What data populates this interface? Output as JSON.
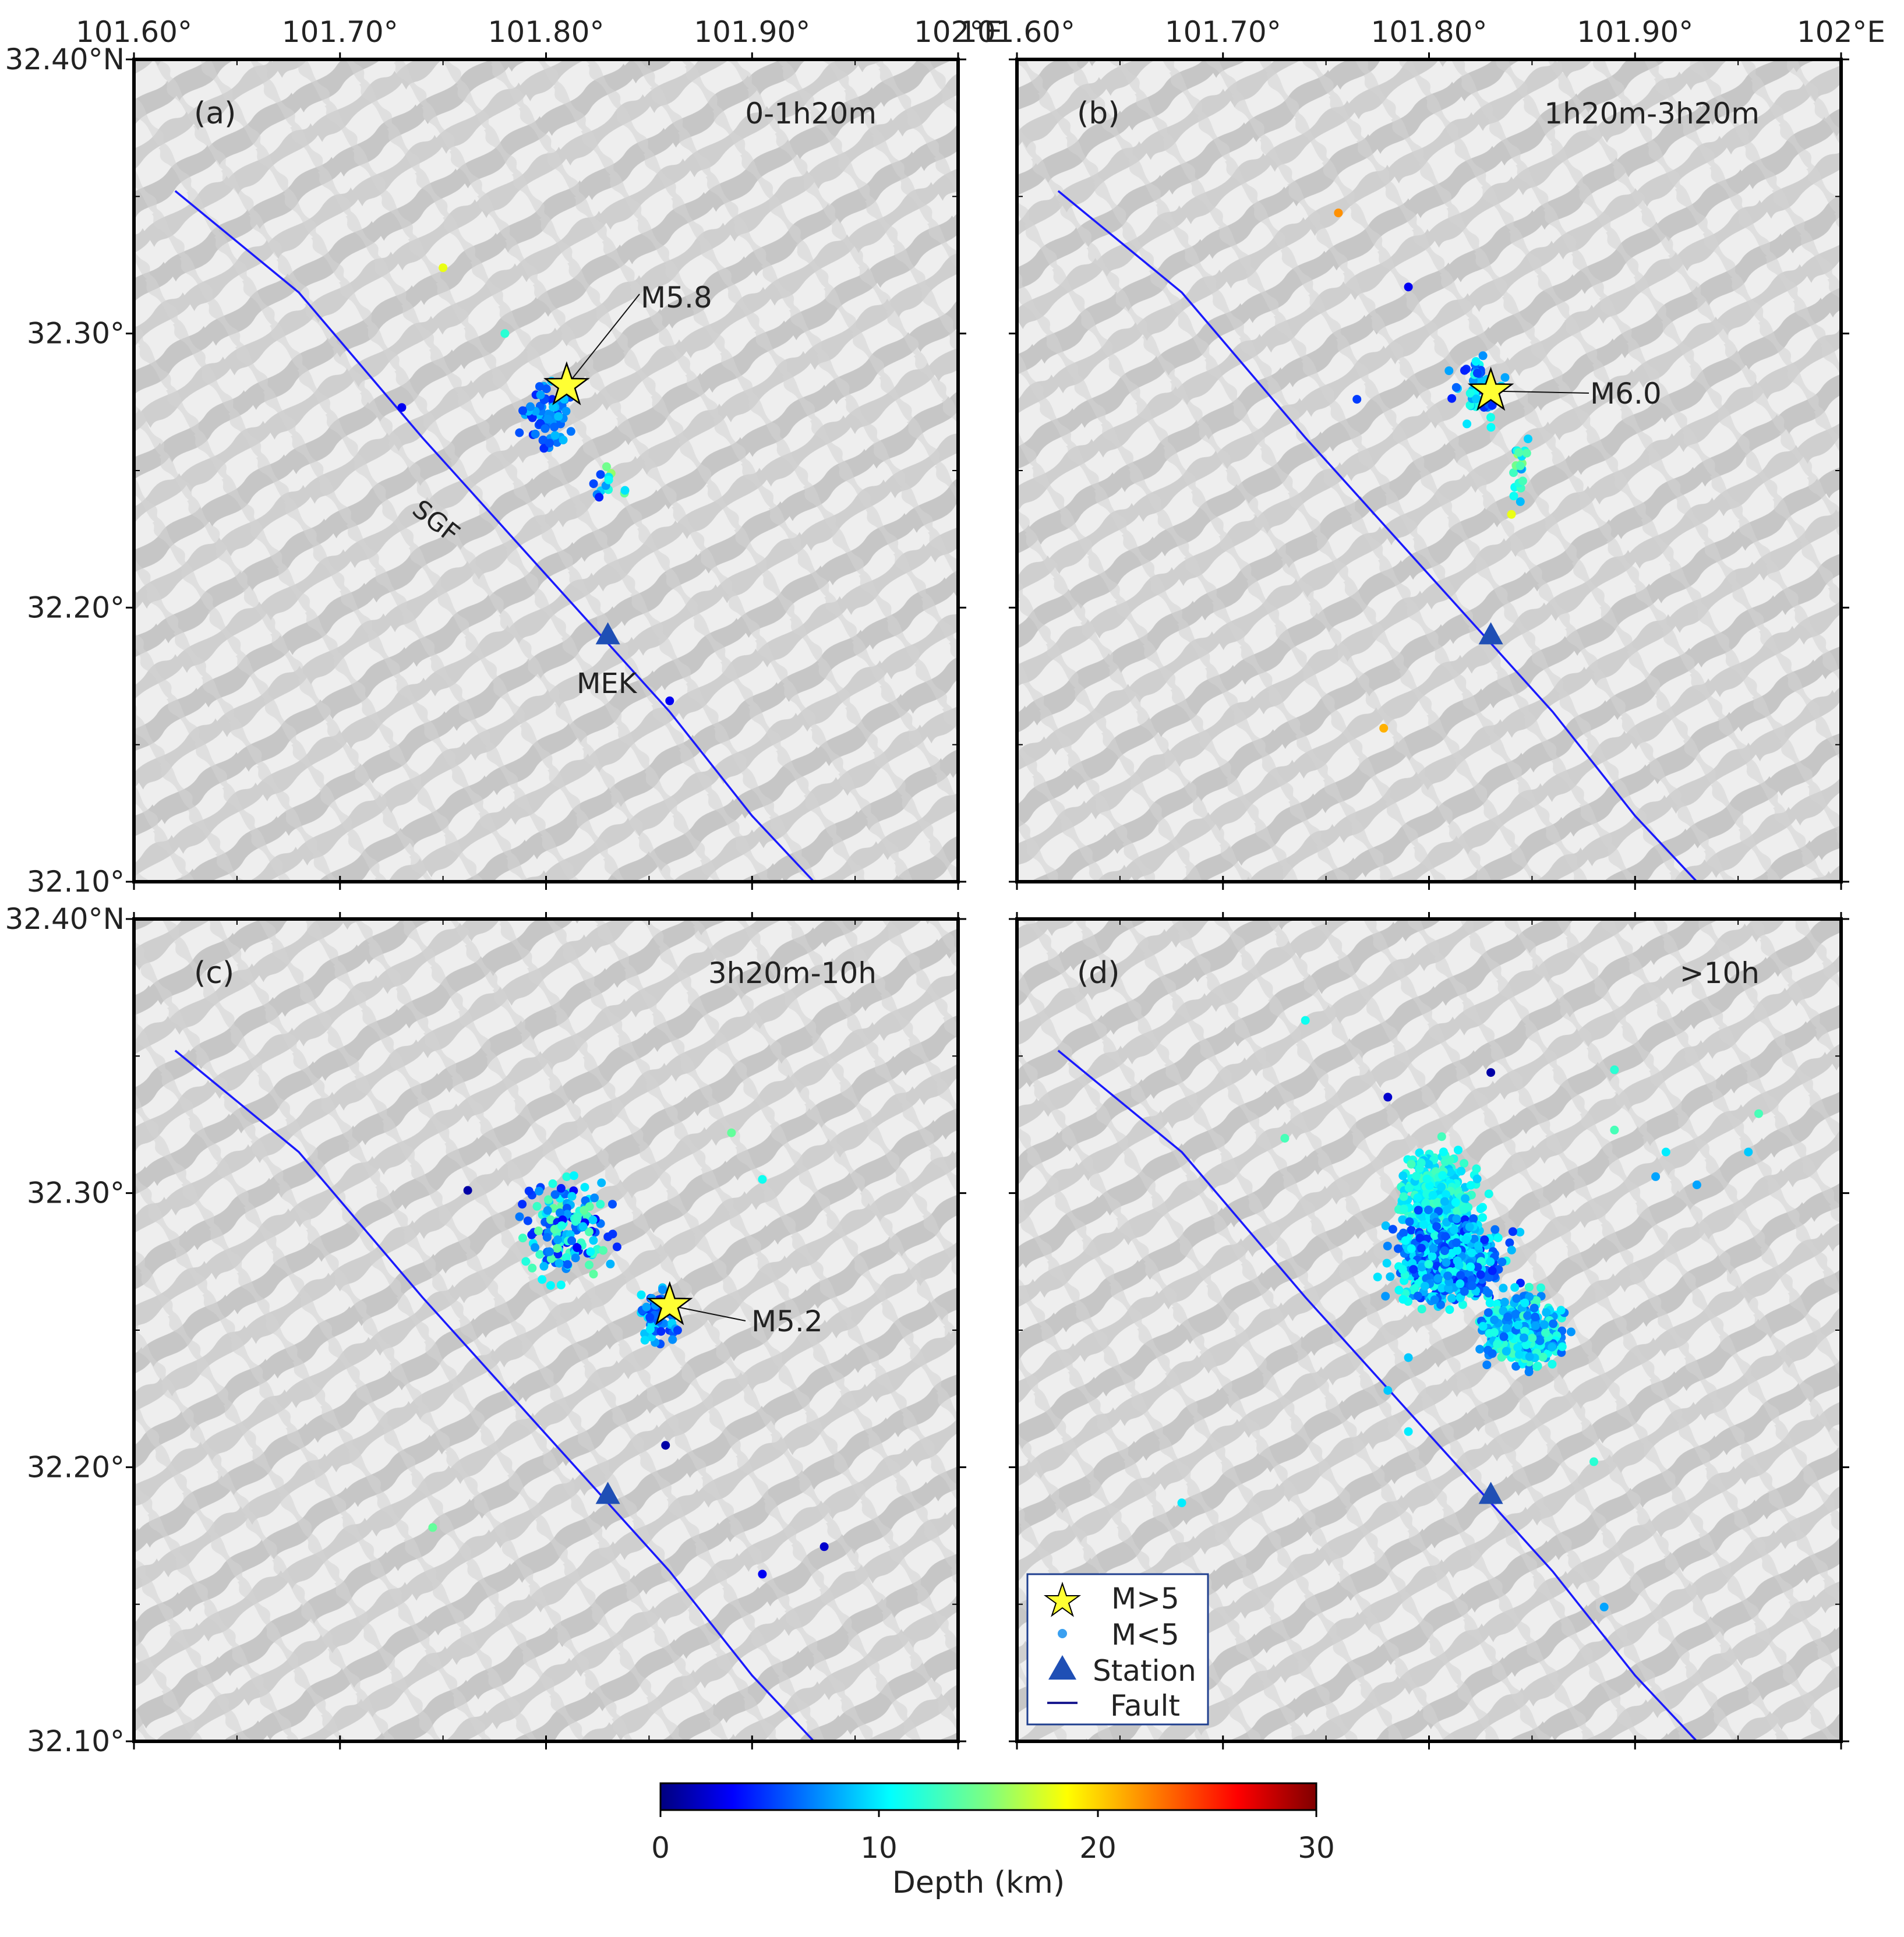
{
  "figure": {
    "axes": {
      "lon_ticks": [
        "101.60°",
        "101.70°",
        "101.80°",
        "101.90°",
        "102°E"
      ],
      "lat_ticks": [
        "32.40°N",
        "32.30°",
        "32.20°",
        "32.10°"
      ],
      "lon_range": [
        101.6,
        102.0
      ],
      "lat_range": [
        32.1,
        32.4
      ]
    },
    "panels": [
      {
        "id": "a",
        "label": "(a)",
        "time_window": "0-1h20m",
        "mainshock": {
          "label": "M5.8",
          "lon": 101.81,
          "lat": 32.281
        },
        "fault_label": "SGF",
        "station_label": "MEK"
      },
      {
        "id": "b",
        "label": "(b)",
        "time_window": "1h20m-3h20m",
        "mainshock": {
          "label": "M6.0",
          "lon": 101.83,
          "lat": 32.279
        }
      },
      {
        "id": "c",
        "label": "(c)",
        "time_window": "3h20m-10h",
        "mainshock": {
          "label": "M5.2",
          "lon": 101.86,
          "lat": 32.259
        }
      },
      {
        "id": "d",
        "label": "(d)",
        "time_window": ">10h"
      }
    ],
    "station": {
      "lon": 101.83,
      "lat": 32.19
    },
    "fault_trace": [
      [
        101.62,
        32.352
      ],
      [
        101.68,
        32.315
      ],
      [
        101.74,
        32.262
      ],
      [
        101.8,
        32.212
      ],
      [
        101.86,
        32.162
      ],
      [
        101.9,
        32.124
      ],
      [
        101.93,
        32.1
      ]
    ],
    "legend": {
      "items": [
        "M>5",
        "M<5",
        "Station",
        "Fault"
      ]
    },
    "colorbar": {
      "label": "Depth (km)",
      "ticks": [
        "0",
        "10",
        "20",
        "30"
      ],
      "range": [
        0,
        30
      ]
    },
    "colors": {
      "fault": "#1a1aff",
      "station": "#1f4fb5",
      "star": "#ffff33",
      "terrain_light": "#eeeeee",
      "terrain_shade": "#c6c6c6"
    }
  }
}
